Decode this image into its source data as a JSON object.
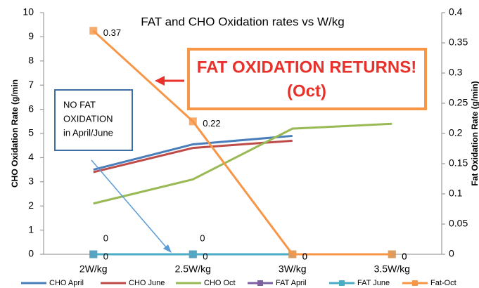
{
  "chart_data": {
    "type": "line",
    "title": "FAT and CHO Oxidation rates vs W/kg",
    "ylabel": "CHO Oxidation Rate (g/min",
    "y2label": "Fat Oxidation Rate (g/min)",
    "categories": [
      "2W/kg",
      "2.5W/kg",
      "3W/kg",
      "3.5W/kg"
    ],
    "ylim": [
      0,
      10
    ],
    "yticks": [
      0,
      1,
      2,
      3,
      4,
      5,
      6,
      7,
      8,
      9,
      10
    ],
    "y2lim": [
      0,
      0.4
    ],
    "y2ticks": [
      0,
      0.05,
      0.1,
      0.15,
      0.2,
      0.25,
      0.3,
      0.35,
      0.4
    ],
    "legend": "bottom",
    "series": [
      {
        "name": "CHO April",
        "color": "#4a7ebb",
        "values": [
          3.5,
          4.55,
          4.9,
          null
        ]
      },
      {
        "name": "CHO June",
        "color": "#be4b48",
        "values": [
          3.4,
          4.4,
          4.7,
          null
        ]
      },
      {
        "name": "CHO Oct",
        "color": "#98b954",
        "values": [
          2.1,
          3.1,
          5.2,
          5.4
        ]
      },
      {
        "name": "FAT April",
        "color": "#7d60a0",
        "axis": "y2",
        "marker": "square",
        "data_labels": true,
        "values": [
          0,
          0,
          null,
          null
        ]
      },
      {
        "name": "FAT June",
        "color": "#4bacc6",
        "axis": "y2",
        "marker": "square",
        "data_labels": true,
        "values": [
          0,
          0,
          0,
          0
        ]
      },
      {
        "name": "Fat-Oct",
        "color": "#f79646",
        "axis": "y2",
        "marker": "square",
        "data_labels": true,
        "values": [
          0.37,
          0.22,
          0,
          0
        ]
      }
    ],
    "annotations": [
      {
        "text": [
          "FAT OXIDATION RETURNS!",
          "(Oct)"
        ]
      },
      {
        "text": [
          "NO FAT",
          "OXIDATION",
          "in April/June"
        ]
      }
    ]
  }
}
